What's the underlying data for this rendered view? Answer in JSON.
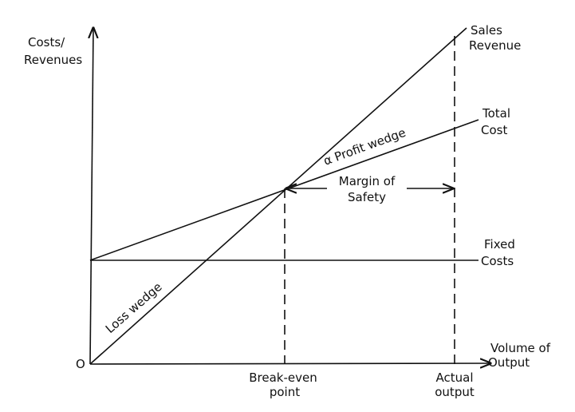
{
  "y_axis_label": [
    "Costs/",
    "Revenues"
  ],
  "origin_label": "O",
  "x_axis_label": [
    "Volume of",
    "Output"
  ],
  "sales_revenue_label": [
    "Sales",
    "Revenue"
  ],
  "total_cost_label": [
    "Total",
    "Cost"
  ],
  "fixed_costs_label": [
    "Fixed",
    "Costs"
  ],
  "profit_wedge_label": "α Profit wedge",
  "loss_wedge_label": "Loss wedge",
  "margin_of_safety_label": [
    "Margin of",
    "Safety"
  ],
  "break_even_label": [
    "Break-even",
    "point"
  ],
  "actual_output_label": [
    "Actual",
    "output"
  ]
}
